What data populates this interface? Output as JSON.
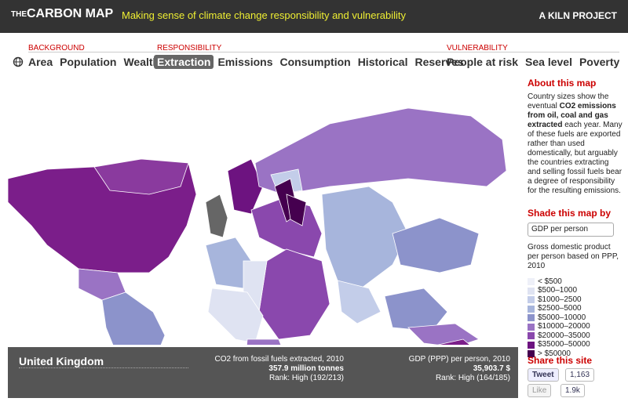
{
  "header": {
    "brand_prefix": "THE",
    "brand": "CARBON MAP",
    "tagline": "Making sense of climate change responsibility and vulnerability",
    "credit": "A KILN PROJECT"
  },
  "nav": {
    "selected": "Extraction",
    "groups": [
      {
        "label": "BACKGROUND",
        "items": [
          "Area",
          "Population",
          "Wealth"
        ]
      },
      {
        "label": "RESPONSIBILITY",
        "items": [
          "Extraction",
          "Emissions",
          "Consumption",
          "Historical",
          "Reserves"
        ]
      },
      {
        "label": "VULNERABILITY",
        "items": [
          "People at risk",
          "Sea level",
          "Poverty"
        ]
      }
    ]
  },
  "sidebar": {
    "about_title": "About this map",
    "about_runs": [
      {
        "text": "Country sizes show the eventual "
      },
      {
        "text": "CO2 emissions from oil, coal and gas extracted",
        "bold": true
      },
      {
        "text": " each year. Many of these fuels are exported rather than used domestically, but arguably the countries extracting and selling fossil fuels bear a degree of responsibility for the resulting emissions."
      }
    ],
    "shade_title": "Shade this map by",
    "shade_select": "GDP per person",
    "shade_description": "Gross domestic product per person based on PPP, 2010",
    "legend": [
      {
        "label": "< $500",
        "color": "#eef0f8"
      },
      {
        "label": "$500–1000",
        "color": "#dfe3f2"
      },
      {
        "label": "$1000–2500",
        "color": "#c3cde9"
      },
      {
        "label": "$2500–5000",
        "color": "#a7b5dc"
      },
      {
        "label": "$5000–10000",
        "color": "#8c93cb"
      },
      {
        "label": "$10000–20000",
        "color": "#9a73c4"
      },
      {
        "label": "$20000–35000",
        "color": "#8a48ad"
      },
      {
        "label": "$35000–50000",
        "color": "#6d1380"
      },
      {
        "label": "> $50000",
        "color": "#45004f"
      }
    ],
    "share_title": "Share this site",
    "tweet": "Tweet",
    "tweet_count": "1,163",
    "like": "Like",
    "like_count": "1.9k"
  },
  "detail": {
    "country": "United Kingdom",
    "metric1": {
      "label": "CO2 from fossil fuels extracted, 2010",
      "value": "357.9 million tonnes",
      "rank": "Rank: High (192/213)"
    },
    "metric2": {
      "label": "GDP (PPP) per person, 2010",
      "value": "35,903.7 $",
      "rank": "Rank: High (164/185)"
    }
  }
}
